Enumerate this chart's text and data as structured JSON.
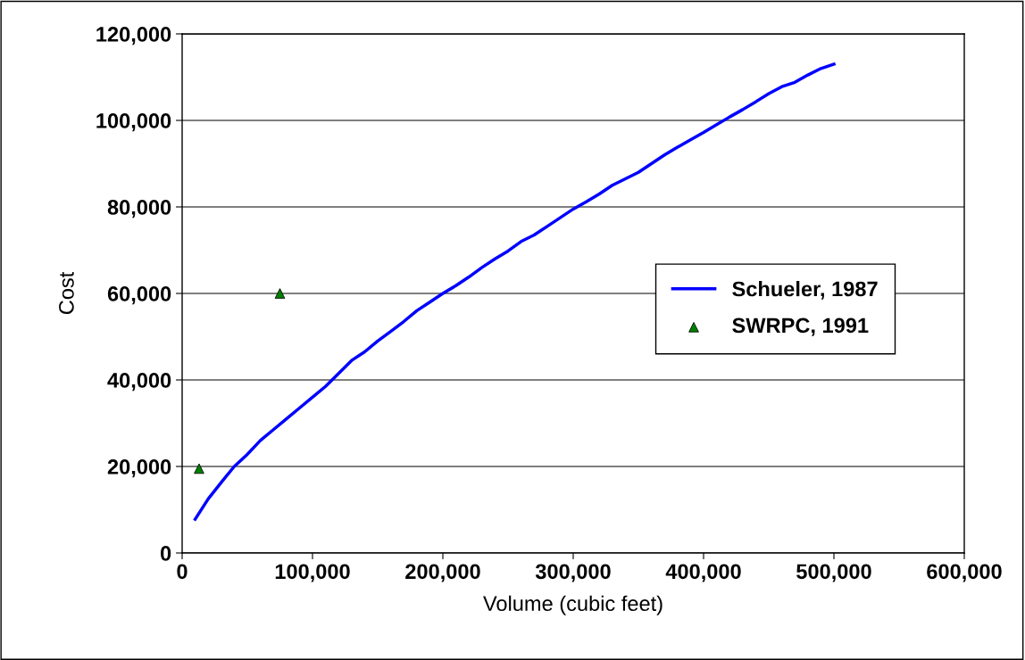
{
  "chart_data": {
    "type": "line",
    "xlabel": "Volume (cubic feet)",
    "ylabel": "Cost",
    "xlim": [
      0,
      600000
    ],
    "ylim": [
      0,
      120000
    ],
    "xticks": [
      {
        "value": 0,
        "label": "0"
      },
      {
        "value": 100000,
        "label": "100,000"
      },
      {
        "value": 200000,
        "label": "200,000"
      },
      {
        "value": 300000,
        "label": "300,000"
      },
      {
        "value": 400000,
        "label": "400,000"
      },
      {
        "value": 500000,
        "label": "500,000"
      },
      {
        "value": 600000,
        "label": "600,000"
      }
    ],
    "yticks": [
      {
        "value": 0,
        "label": "0"
      },
      {
        "value": 20000,
        "label": "20,000"
      },
      {
        "value": 40000,
        "label": "40,000"
      },
      {
        "value": 60000,
        "label": "60,000"
      },
      {
        "value": 80000,
        "label": "80,000"
      },
      {
        "value": 100000,
        "label": "100,000"
      },
      {
        "value": 120000,
        "label": "120,000"
      }
    ],
    "grid": "y",
    "legend": "right",
    "series": [
      {
        "name": "Schueler, 1987",
        "color": "#0000ff",
        "marker": "none",
        "line_style": "solid",
        "x": [
          10000,
          20000,
          30000,
          40000,
          50000,
          60000,
          70000,
          80000,
          90000,
          100000,
          110000,
          120000,
          130000,
          140000,
          150000,
          160000,
          170000,
          180000,
          190000,
          200000,
          210000,
          220000,
          230000,
          240000,
          250000,
          260000,
          270000,
          280000,
          290000,
          300000,
          310000,
          320000,
          330000,
          340000,
          350000,
          360000,
          370000,
          380000,
          390000,
          400000,
          410000,
          420000,
          430000,
          440000,
          450000,
          460000,
          470000,
          480000,
          490000,
          500000
        ],
        "values": [
          7800,
          12500,
          16300,
          20000,
          22800,
          26000,
          28500,
          31000,
          33500,
          36000,
          38500,
          41500,
          44500,
          46500,
          49000,
          51200,
          53500,
          56000,
          58000,
          60000,
          61800,
          63800,
          66000,
          68000,
          69800,
          72000,
          73500,
          75500,
          77500,
          79500,
          81200,
          83000,
          85000,
          86500,
          88000,
          90000,
          92000,
          93800,
          95500,
          97200,
          99000,
          100800,
          102500,
          104300,
          106200,
          107800,
          108800,
          110500,
          112000,
          113000
        ]
      },
      {
        "name": "SWRPC, 1991",
        "type": "scatter",
        "color": "#008000",
        "marker": "triangle",
        "x": [
          13000,
          75000
        ],
        "values": [
          19500,
          60000
        ]
      }
    ]
  }
}
